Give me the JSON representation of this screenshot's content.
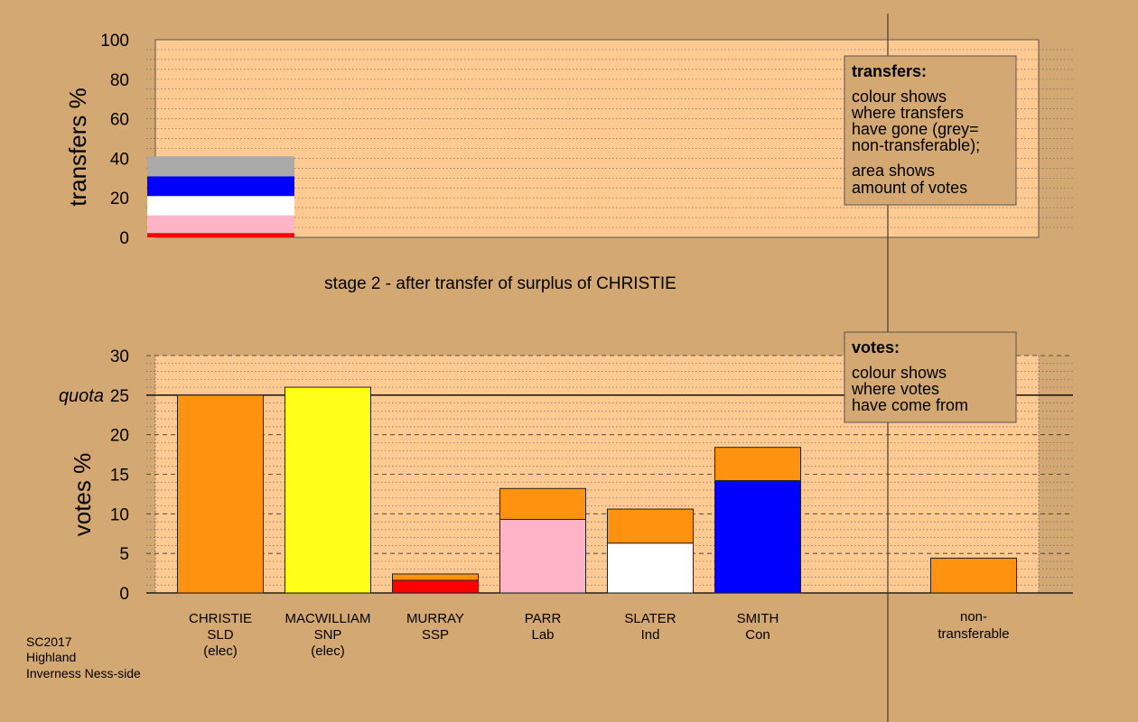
{
  "stage_title": "stage 2 - after transfer of surplus of CHRISTIE",
  "footer": [
    "SC2017",
    "Highland",
    "Inverness Ness-side"
  ],
  "transfers_legend": {
    "title": "transfers:",
    "line1": [
      "colour shows",
      "where transfers",
      "have gone (grey=",
      "non-transferable);"
    ],
    "line2": [
      "area shows",
      "amount of votes"
    ]
  },
  "votes_legend": {
    "title": "votes:",
    "lines": [
      "colour shows",
      "where votes",
      "have come from"
    ]
  },
  "quota_label": "quota",
  "colors": {
    "background": "#d4a872",
    "plot_bg": "#ffc992",
    "SLD": "#ff9310",
    "SNP": "#ffff1a",
    "SSP": "#ff0000",
    "Lab": "#ffb3c6",
    "Ind": "#ffffff",
    "Con": "#0000ff",
    "nontransferable": "#aaaaaa"
  },
  "chart_data": [
    {
      "type": "bar",
      "stacked": true,
      "ylabel": "transfers %",
      "ylim": [
        0,
        100
      ],
      "yticks": [
        0,
        20,
        40,
        60,
        80,
        100
      ],
      "segments": [
        {
          "party": "SSP",
          "value": 2.2
        },
        {
          "party": "Lab",
          "value": 8.9
        },
        {
          "party": "Ind",
          "value": 9.8
        },
        {
          "party": "Con",
          "value": 10.0
        },
        {
          "party": "nontransferable",
          "value": 10.1
        }
      ]
    },
    {
      "type": "bar",
      "stacked": true,
      "ylabel": "votes %",
      "ylim": [
        0,
        30
      ],
      "yticks": [
        0,
        5,
        10,
        15,
        20,
        25,
        30
      ],
      "quota": 25,
      "candidates": [
        {
          "name": "CHRISTIE",
          "party": "SLD",
          "status": "(elec)",
          "segments": [
            {
              "from": "SLD",
              "value": 25.0
            }
          ]
        },
        {
          "name": "MACWILLIAM",
          "party": "SNP",
          "status": "(elec)",
          "segments": [
            {
              "from": "SNP",
              "value": 26.0
            }
          ]
        },
        {
          "name": "MURRAY",
          "party": "SSP",
          "status": "",
          "segments": [
            {
              "from": "SSP",
              "value": 1.6
            },
            {
              "from": "SLD",
              "value": 0.8
            }
          ]
        },
        {
          "name": "PARR",
          "party": "Lab",
          "status": "",
          "segments": [
            {
              "from": "Lab",
              "value": 9.3
            },
            {
              "from": "SLD",
              "value": 3.9
            }
          ]
        },
        {
          "name": "SLATER",
          "party": "Ind",
          "status": "",
          "segments": [
            {
              "from": "Ind",
              "value": 6.3
            },
            {
              "from": "SLD",
              "value": 4.3
            }
          ]
        },
        {
          "name": "SMITH",
          "party": "Con",
          "status": "",
          "segments": [
            {
              "from": "Con",
              "value": 14.2
            },
            {
              "from": "SLD",
              "value": 4.2
            }
          ]
        }
      ],
      "nontransferable": {
        "label": [
          "non-",
          "transferable"
        ],
        "segments": [
          {
            "from": "SLD",
            "value": 4.4
          }
        ]
      }
    }
  ]
}
